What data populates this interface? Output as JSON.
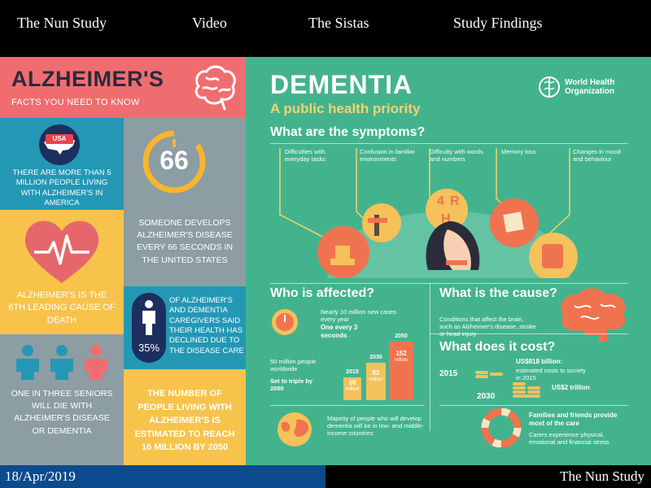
{
  "nav": {
    "items": [
      "The Nun Study",
      "Video",
      "The Sistas",
      "Study Findings"
    ]
  },
  "footer": {
    "date": "18/Apr/2019",
    "site": "The Nun Study"
  },
  "alz": {
    "title": "ALZHEIMER'S",
    "subtitle": "FACTS YOU NEED TO KNOW",
    "usa_badge": "USA",
    "usa_text": "THERE ARE MORE THAN 5 MILLION PEOPLE LIVING WITH ALZHEIMER'S IN AMERICA",
    "seconds_value": "66",
    "seconds_text": "SOMEONE DEVELOPS ALZHEIMER'S DISEASE EVERY 66 SECONDS IN THE UNITED STATES",
    "heart_text": "ALZHEIMER'S IS THE 6TH LEADING CAUSE OF DEATH",
    "care_percent": "35%",
    "care_text": "OF ALZHEIMER'S AND DEMENTIA CAREGIVERS SAID THEIR HEALTH HAS DECLINED DUE TO THE DISEASE CARE",
    "seniors_text": "ONE IN THREE SENIORS WILL DIE WITH ALZHEIMER'S DISEASE OR DEMENTIA",
    "future_text": "THE NUMBER OF PEOPLE LIVING WITH ALZHEIMER'S IS ESTIMATED TO REACH 16 MILLION BY 2050",
    "colors": {
      "coral": "#f06d6f",
      "blue": "#2398b5",
      "grey": "#8d9da4",
      "yellow": "#f7c34b"
    }
  },
  "who": {
    "title": "DEMENTIA",
    "subtitle": "A public health priority",
    "org_line1": "World Health",
    "org_line2": "Organization",
    "symptoms_title": "What are the symptoms?",
    "symptoms": [
      "Difficulties with everyday tasks",
      "Confusion in familiar environments",
      "Difficulty with words and numbers",
      "Memory loss",
      "Changes in mood and behaviour"
    ],
    "affected_title": "Who is affected?",
    "affected_new_cases": "Nearly 10 million new cases every year",
    "affected_rate": "One every 3 seconds",
    "affected_worldwide": "50 million people worldwide",
    "affected_triple": "Set to triple by 2050",
    "bars": [
      {
        "year": "2015",
        "value": "50",
        "unit": "million"
      },
      {
        "year": "2030",
        "value": "82",
        "unit": "million"
      },
      {
        "year": "2050",
        "value": "152",
        "unit": "million"
      }
    ],
    "countries_text": "Majority of people who will develop dementia will be in low- and middle-income countries",
    "cause_title": "What is the cause?",
    "cause_text": "Conditions that affect the brain, such as Alzheimer's disease, stroke or head injury",
    "cost_title": "What does it cost?",
    "cost_2015_year": "2015",
    "cost_2015_value": "US$818 billion:",
    "cost_2015_desc": "estimated costs to society in 2015",
    "cost_2030_year": "2030",
    "cost_2030_value": "US$2 trillion",
    "care_title": "Families and friends provide most of the care",
    "care_desc": "Carers experience physical, emotional and financial stress",
    "colors": {
      "green": "#43b38e",
      "orange": "#f0734f",
      "yellow": "#f4c15a"
    }
  }
}
